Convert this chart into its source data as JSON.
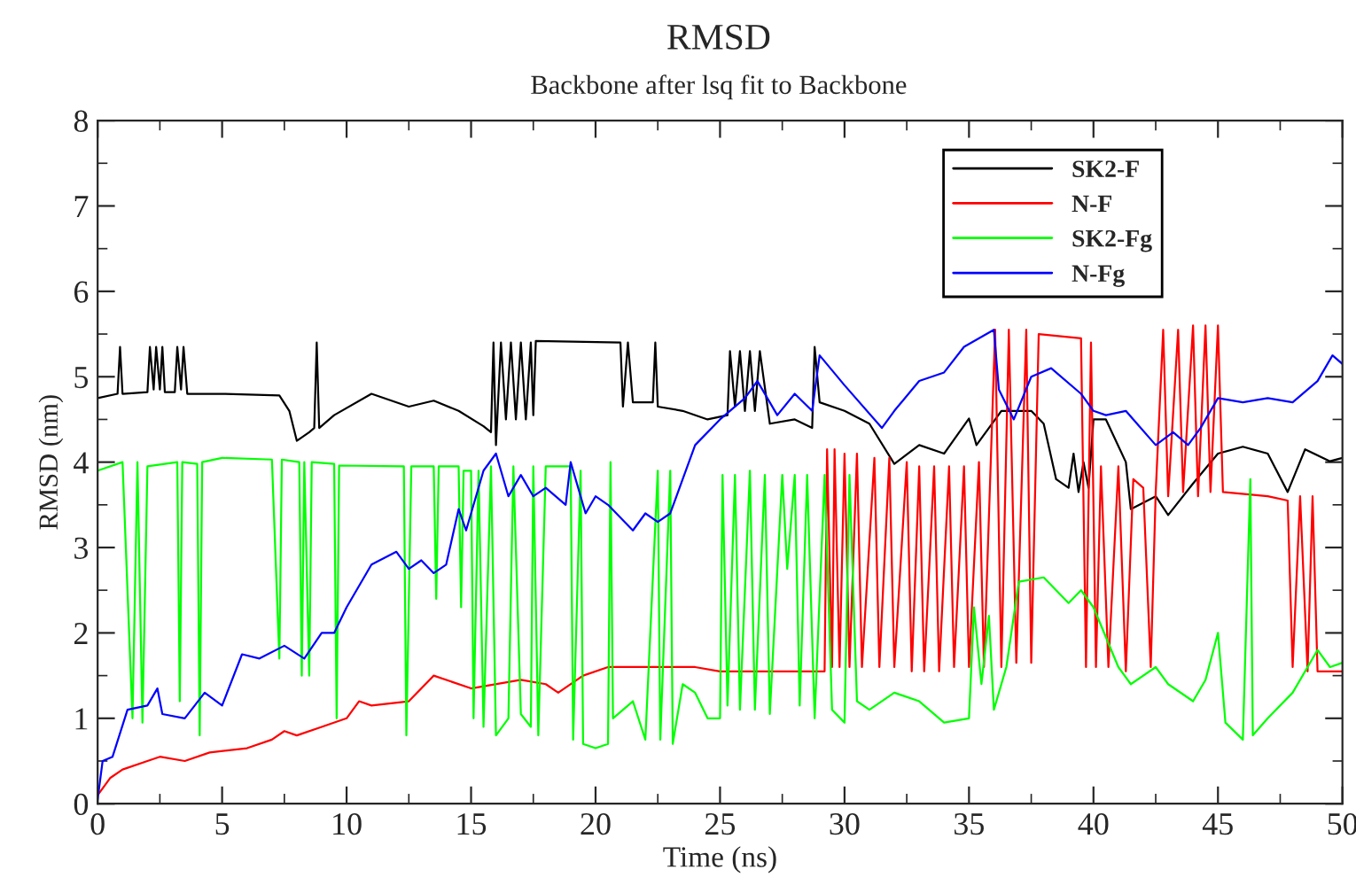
{
  "chart_data": {
    "type": "line",
    "title": "RMSD",
    "subtitle": "Backbone after lsq fit to Backbone",
    "xlabel": "Time (ns)",
    "ylabel": "RMSD (nm)",
    "xlim": [
      0,
      50
    ],
    "ylim": [
      0,
      8
    ],
    "xticks": [
      0,
      5,
      10,
      15,
      20,
      25,
      30,
      35,
      40,
      45,
      50
    ],
    "yticks": [
      0,
      1,
      2,
      3,
      4,
      5,
      6,
      7,
      8
    ],
    "grid": false,
    "legend": "top right",
    "line_style": "solid",
    "marker": "none",
    "series": [
      {
        "name": "SK2-F",
        "color": "#000000",
        "x": [
          0,
          0.8,
          0.9,
          1.0,
          2.0,
          2.1,
          2.25,
          2.35,
          2.5,
          2.6,
          2.7,
          3.1,
          3.2,
          3.35,
          3.45,
          3.6,
          5,
          7.3,
          7.7,
          8,
          8.5,
          8.7,
          8.8,
          8.9,
          9.5,
          11,
          12.5,
          13.5,
          14.5,
          15.5,
          15.8,
          15.9,
          16.0,
          16.2,
          16.4,
          16.6,
          16.8,
          17.0,
          17.2,
          17.4,
          17.5,
          17.6,
          21,
          21.1,
          21.3,
          21.5,
          22.3,
          22.4,
          22.5,
          23.5,
          24.5,
          25.3,
          25.4,
          25.6,
          25.8,
          26.0,
          26.2,
          26.4,
          26.6,
          27,
          28,
          28.7,
          28.8,
          29,
          30,
          31,
          32,
          33,
          34,
          35,
          35.3,
          36.3,
          37.5,
          38,
          38.5,
          39,
          39.2,
          39.4,
          39.6,
          39.8,
          40,
          40.5,
          41.3,
          41.5,
          42.5,
          43,
          44,
          45,
          46,
          47,
          47.8,
          48.5,
          49.5,
          50
        ],
        "values": [
          4.75,
          4.8,
          5.35,
          4.8,
          4.82,
          5.35,
          4.85,
          5.35,
          4.85,
          5.35,
          4.82,
          4.82,
          5.35,
          4.85,
          5.35,
          4.8,
          4.8,
          4.78,
          4.6,
          4.25,
          4.35,
          4.4,
          5.4,
          4.4,
          4.55,
          4.8,
          4.65,
          4.72,
          4.6,
          4.42,
          4.35,
          5.4,
          4.2,
          5.4,
          4.5,
          5.4,
          4.5,
          5.4,
          4.5,
          5.4,
          4.55,
          5.42,
          5.4,
          4.65,
          5.4,
          4.7,
          4.7,
          5.4,
          4.65,
          4.6,
          4.5,
          4.55,
          5.3,
          4.65,
          5.3,
          4.6,
          5.3,
          4.6,
          5.3,
          4.45,
          4.5,
          4.4,
          5.35,
          4.7,
          4.6,
          4.45,
          3.98,
          4.2,
          4.1,
          4.51,
          4.2,
          4.6,
          4.6,
          4.45,
          3.8,
          3.7,
          4.1,
          3.65,
          4.0,
          3.7,
          4.5,
          4.5,
          4.0,
          3.45,
          3.6,
          3.38,
          3.75,
          4.1,
          4.18,
          4.1,
          3.65,
          4.15,
          4.01,
          4.05
        ]
      },
      {
        "name": "N-F",
        "color": "#ff0000",
        "x": [
          0,
          0.5,
          1,
          2,
          2.5,
          3.5,
          4.5,
          6,
          7,
          7.5,
          8,
          9,
          10,
          10.5,
          11,
          12.5,
          13.5,
          15,
          17,
          18,
          18.5,
          19.5,
          20.5,
          22.5,
          24,
          25,
          29.2,
          29.3,
          29.5,
          29.6,
          29.8,
          30,
          30.2,
          30.5,
          30.7,
          31.2,
          31.4,
          31.8,
          32,
          32.5,
          32.7,
          33,
          33.2,
          33.6,
          33.8,
          34.2,
          34.4,
          34.8,
          35,
          35.4,
          35.6,
          36.05,
          36.3,
          36.6,
          36.9,
          37.3,
          37.5,
          37.8,
          39.5,
          39.7,
          39.9,
          40.1,
          40.3,
          40.6,
          41,
          41.3,
          41.6,
          42,
          42.3,
          42.5,
          42.8,
          43,
          43.4,
          43.6,
          44,
          44.2,
          44.5,
          44.7,
          45,
          45.2,
          47,
          47.8,
          48,
          48.3,
          48.6,
          48.8,
          49,
          50
        ],
        "values": [
          0.1,
          0.3,
          0.4,
          0.5,
          0.55,
          0.5,
          0.6,
          0.65,
          0.75,
          0.85,
          0.8,
          0.9,
          1.0,
          1.2,
          1.15,
          1.2,
          1.5,
          1.35,
          1.45,
          1.4,
          1.3,
          1.5,
          1.6,
          1.6,
          1.6,
          1.55,
          1.55,
          4.15,
          1.6,
          4.15,
          1.6,
          4.1,
          1.6,
          4.1,
          1.6,
          4.05,
          1.6,
          4.05,
          1.6,
          4.0,
          1.55,
          3.95,
          1.55,
          3.95,
          1.55,
          3.95,
          1.6,
          3.95,
          1.6,
          4.0,
          1.6,
          5.55,
          1.6,
          5.55,
          1.65,
          5.55,
          1.65,
          5.5,
          5.45,
          1.6,
          5.4,
          1.6,
          3.95,
          1.6,
          3.95,
          1.55,
          3.8,
          3.7,
          1.6,
          3.65,
          5.55,
          3.6,
          5.55,
          3.65,
          5.6,
          3.6,
          5.6,
          3.65,
          5.6,
          3.65,
          3.6,
          3.55,
          1.6,
          3.6,
          1.55,
          3.6,
          1.55,
          1.55
        ]
      },
      {
        "name": "SK2-Fg",
        "color": "#00ff00",
        "x": [
          0,
          1,
          1.4,
          1.6,
          1.8,
          2,
          3.2,
          3.3,
          3.4,
          4.0,
          4.1,
          4.2,
          5,
          7,
          7.3,
          7.4,
          8.1,
          8.2,
          8.3,
          8.5,
          8.6,
          9.5,
          9.6,
          9.7,
          12.3,
          12.4,
          12.6,
          13.5,
          13.6,
          13.7,
          14.5,
          14.6,
          14.7,
          15.0,
          15.1,
          15.3,
          15.5,
          15.8,
          16.0,
          16.5,
          16.7,
          17.0,
          17.4,
          17.5,
          17.7,
          18,
          19,
          19.1,
          19.4,
          19.5,
          20,
          20.5,
          20.6,
          20.7,
          21.5,
          22,
          22.5,
          22.6,
          23,
          23.1,
          23.5,
          24,
          24.5,
          25,
          25.1,
          25.3,
          25.6,
          25.8,
          26.2,
          26.4,
          26.8,
          27,
          27.5,
          27.7,
          28,
          28.2,
          28.5,
          28.8,
          29.2,
          29.5,
          30,
          30.2,
          30.5,
          31,
          32,
          33,
          34,
          35,
          35.2,
          35.5,
          35.8,
          36,
          36.5,
          37,
          38,
          39,
          39.5,
          40,
          40.5,
          41,
          41.5,
          42.5,
          43,
          44,
          44.5,
          45,
          45.3,
          46,
          46.3,
          46.4,
          47,
          48,
          49,
          49.5,
          50
        ],
        "values": [
          3.9,
          4.0,
          1.0,
          4.0,
          0.95,
          3.95,
          4.0,
          1.2,
          4.0,
          3.98,
          0.8,
          4.0,
          4.05,
          4.03,
          1.7,
          4.03,
          4.0,
          1.5,
          4.0,
          1.5,
          4.0,
          3.98,
          1.0,
          3.96,
          3.95,
          0.8,
          3.95,
          3.95,
          2.4,
          3.95,
          3.95,
          2.3,
          3.9,
          3.9,
          1.0,
          3.9,
          0.9,
          3.95,
          0.8,
          1.0,
          3.95,
          1.05,
          0.9,
          3.95,
          0.8,
          3.95,
          3.95,
          0.75,
          3.9,
          0.7,
          0.65,
          0.7,
          4.0,
          1.0,
          1.2,
          0.75,
          3.9,
          0.75,
          3.9,
          0.7,
          1.4,
          1.3,
          1.0,
          1.0,
          3.85,
          1.15,
          3.85,
          1.1,
          3.9,
          1.1,
          3.85,
          1.05,
          3.85,
          2.75,
          3.85,
          1.15,
          3.85,
          1.0,
          3.85,
          1.1,
          0.95,
          3.85,
          1.2,
          1.1,
          1.3,
          1.2,
          0.95,
          1.0,
          2.3,
          1.4,
          2.2,
          1.1,
          1.6,
          2.6,
          2.65,
          2.35,
          2.5,
          2.3,
          1.95,
          1.6,
          1.4,
          1.6,
          1.4,
          1.2,
          1.45,
          2.0,
          0.95,
          0.75,
          3.8,
          0.8,
          1.0,
          1.3,
          1.8,
          1.6,
          1.65
        ]
      },
      {
        "name": "N-Fg",
        "color": "#0000ff",
        "x": [
          0,
          0.2,
          0.6,
          1.2,
          2,
          2.4,
          2.6,
          3.5,
          4.3,
          5,
          5.8,
          6.5,
          7.5,
          8.3,
          9,
          9.5,
          10,
          11,
          12,
          12.5,
          13,
          13.5,
          14,
          14.5,
          14.8,
          15.5,
          16,
          16.5,
          17,
          17.5,
          18,
          18.8,
          19,
          19.6,
          20,
          20.5,
          21.5,
          22,
          22.5,
          23,
          23.5,
          24,
          25,
          26,
          26.5,
          27.3,
          28,
          28.7,
          29,
          30,
          31.5,
          32,
          33,
          34,
          34.8,
          36,
          36.1,
          36.2,
          36.8,
          37.5,
          38.3,
          39.5,
          40,
          40.5,
          41.3,
          42.5,
          43.2,
          43.8,
          44.3,
          45,
          46,
          47,
          48,
          49,
          49.6,
          50
        ],
        "values": [
          0.05,
          0.5,
          0.55,
          1.1,
          1.15,
          1.35,
          1.05,
          1.0,
          1.3,
          1.15,
          1.75,
          1.7,
          1.85,
          1.7,
          2.0,
          2.0,
          2.3,
          2.8,
          2.95,
          2.75,
          2.85,
          2.7,
          2.8,
          3.45,
          3.2,
          3.9,
          4.1,
          3.6,
          3.85,
          3.6,
          3.7,
          3.5,
          4.0,
          3.4,
          3.6,
          3.5,
          3.2,
          3.4,
          3.3,
          3.4,
          3.8,
          4.2,
          4.5,
          4.75,
          4.95,
          4.55,
          4.8,
          4.6,
          5.25,
          4.9,
          4.4,
          4.6,
          4.95,
          5.05,
          5.35,
          5.55,
          5.2,
          4.85,
          4.5,
          5.0,
          5.1,
          4.8,
          4.6,
          4.55,
          4.6,
          4.2,
          4.35,
          4.2,
          4.4,
          4.75,
          4.7,
          4.75,
          4.7,
          4.95,
          5.25,
          5.15
        ]
      }
    ]
  }
}
